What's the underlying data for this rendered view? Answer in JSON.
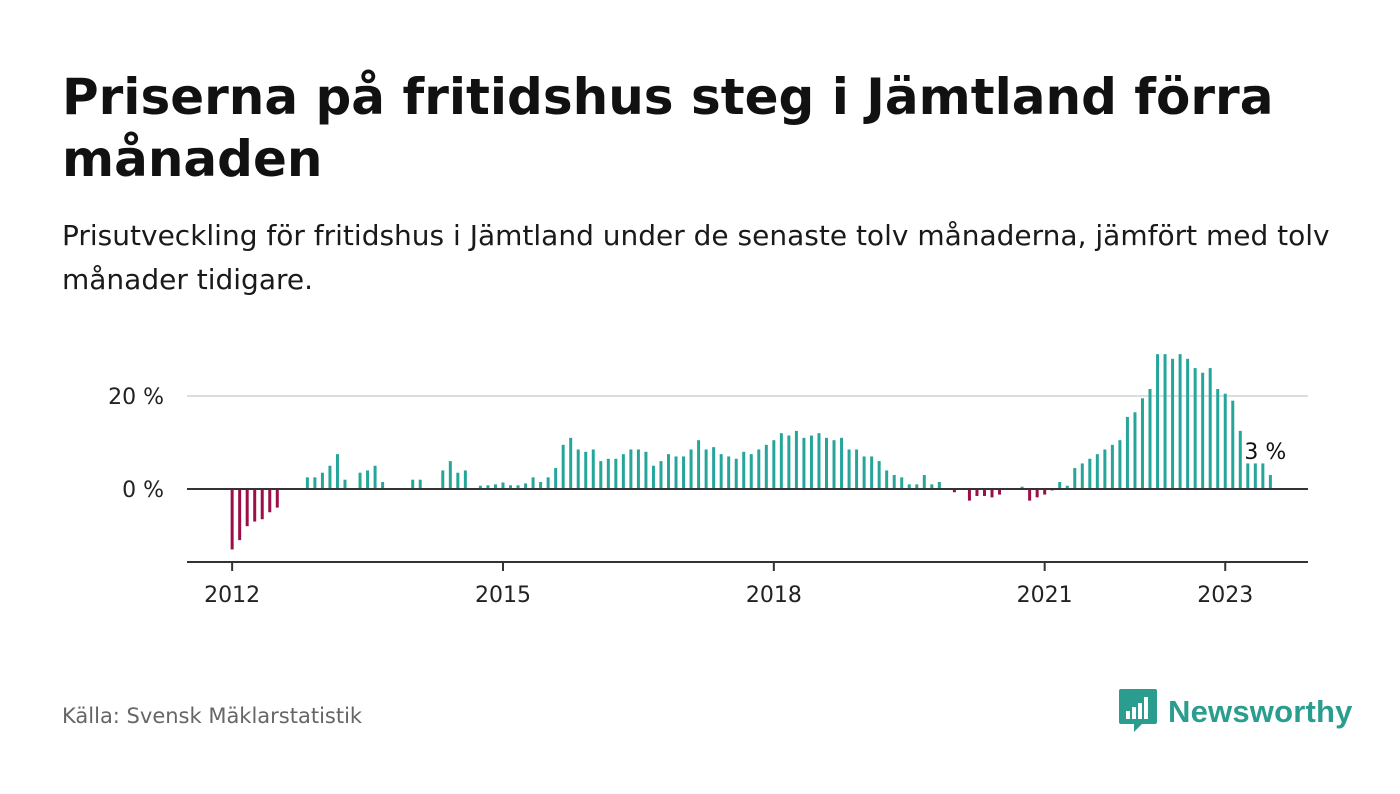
{
  "header": {
    "title": "Priserna på fritidshus steg i Jämtland förra månaden",
    "subtitle": "Prisutveckling för fritidshus i Jämtland under de senaste tolv månaderna, jämfört med tolv månader tidigare."
  },
  "footer": {
    "source": "Källa: Svensk Mäklarstatistik",
    "brand": "Newsworthy",
    "brand_icon": "newsworthy-logo-icon"
  },
  "chart_data": {
    "type": "bar",
    "start": "2012-01",
    "frequency": "monthly",
    "values": [
      -13,
      -11,
      -8,
      -7,
      -6.5,
      -5,
      -4,
      null,
      null,
      null,
      2.5,
      2.5,
      3.5,
      5,
      7.5,
      2,
      null,
      3.5,
      4,
      5,
      1.5,
      null,
      null,
      null,
      2,
      2,
      null,
      null,
      4,
      6,
      3.5,
      4,
      null,
      0.7,
      0.8,
      1,
      1.4,
      0.8,
      0.8,
      1.2,
      2.5,
      1.5,
      2.5,
      4.5,
      9.5,
      11,
      8.5,
      8,
      8.5,
      6,
      6.5,
      6.5,
      7.5,
      8.5,
      8.5,
      8,
      5,
      6,
      7.5,
      7,
      7,
      8.5,
      10.5,
      8.5,
      9,
      7.5,
      7,
      6.5,
      8,
      7.5,
      8.5,
      9.5,
      10.5,
      12,
      11.5,
      12.5,
      11,
      11.5,
      12,
      11,
      10.5,
      11,
      8.5,
      8.5,
      7,
      7,
      6,
      4,
      3,
      2.5,
      1,
      1,
      3,
      1,
      1.5,
      null,
      -0.7,
      null,
      -2.5,
      -1.5,
      -1.5,
      -1.8,
      -1.2,
      null,
      null,
      0.5,
      -2.5,
      -1.8,
      -1.2,
      -0.3,
      1.5,
      0.7,
      4.5,
      5.5,
      6.5,
      7.5,
      8.5,
      9.5,
      10.5,
      15.5,
      16.5,
      19.5,
      21.5,
      29,
      29,
      28,
      29,
      28,
      26,
      25,
      26,
      21.5,
      20.5,
      19,
      12.5,
      5.5,
      5.5,
      5.5,
      3
    ],
    "annotation": "3 %",
    "x_tick_labels": [
      "2012",
      "2015",
      "2018",
      "2021",
      "2023"
    ],
    "y_tick_labels": [
      "20 %",
      "0 %"
    ],
    "y_ticks": [
      20,
      0
    ],
    "ylim": [
      -15,
      30
    ],
    "xlim": [
      "2011-07",
      "2023-12"
    ],
    "grid": true,
    "positive_color": "#26a69a",
    "negative_color": "#9c0d4a",
    "legend": "none"
  }
}
